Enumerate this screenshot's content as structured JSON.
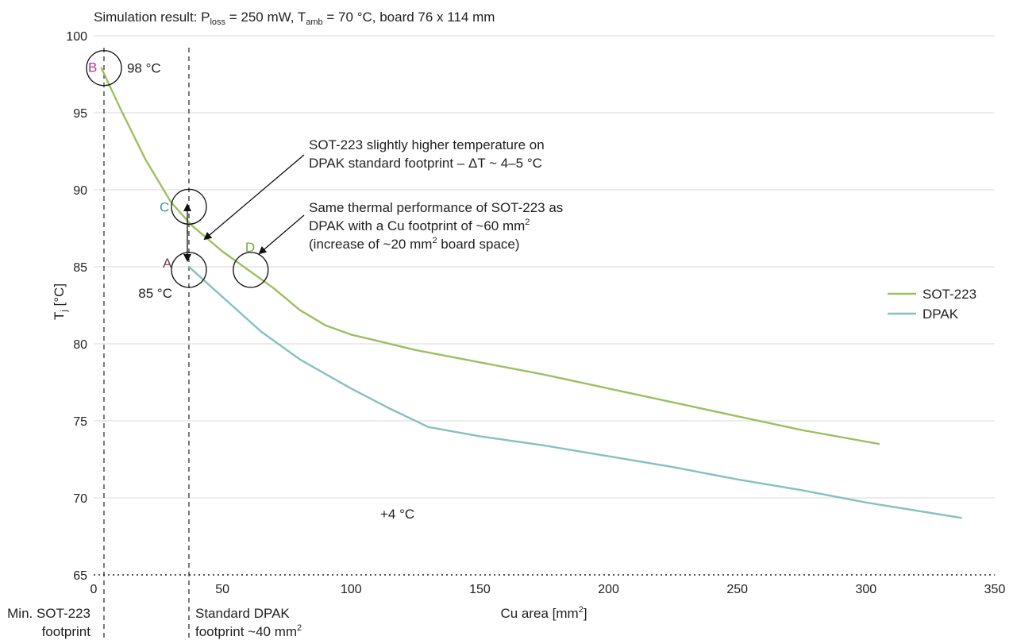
{
  "chart_data": {
    "type": "line",
    "title": {
      "prefix": "Simulation result: P",
      "sub1": "loss",
      "mid1": " = 250 mW, T",
      "sub2": "amb",
      "suffix": " = 70 °C, board 76 x 114 mm"
    },
    "xlabel": {
      "text": "Cu area [mm",
      "sup": "2",
      "close": "]"
    },
    "ylabel": {
      "text": "T",
      "sub": "j",
      "unit": " [°C]"
    },
    "xlim": [
      0,
      350
    ],
    "ylim": [
      65,
      100
    ],
    "xticks": [
      0,
      50,
      100,
      150,
      200,
      250,
      300,
      350
    ],
    "yticks": [
      65,
      70,
      75,
      80,
      85,
      90,
      95,
      100
    ],
    "grid": "horizontal",
    "legend_position": "right",
    "series": [
      {
        "name": "SOT-223",
        "color": "#9dbf63",
        "points": [
          [
            3,
            97.9
          ],
          [
            10,
            95.4
          ],
          [
            20,
            92
          ],
          [
            30,
            89.2
          ],
          [
            38,
            87.7
          ],
          [
            50,
            86
          ],
          [
            60,
            84.8
          ],
          [
            70,
            83.6
          ],
          [
            80,
            82.2
          ],
          [
            90,
            81.2
          ],
          [
            100,
            80.6
          ],
          [
            110,
            80.2
          ],
          [
            125,
            79.6
          ],
          [
            150,
            78.8
          ],
          [
            175,
            78
          ],
          [
            200,
            77.1
          ],
          [
            225,
            76.2
          ],
          [
            250,
            75.3
          ],
          [
            275,
            74.4
          ],
          [
            305,
            73.5
          ]
        ]
      },
      {
        "name": "DPAK",
        "color": "#86c1bd",
        "points": [
          [
            37,
            85
          ],
          [
            45,
            83.8
          ],
          [
            55,
            82.3
          ],
          [
            65,
            80.8
          ],
          [
            80,
            79
          ],
          [
            100,
            77.1
          ],
          [
            115,
            75.8
          ],
          [
            130,
            74.6
          ],
          [
            150,
            74
          ],
          [
            175,
            73.4
          ],
          [
            200,
            72.7
          ],
          [
            225,
            72
          ],
          [
            250,
            71.2
          ],
          [
            275,
            70.5
          ],
          [
            300,
            69.7
          ],
          [
            337,
            68.7
          ]
        ]
      }
    ],
    "vlines": [
      {
        "x": 4,
        "label_lines": [
          "Min. SOT-223",
          "footprint"
        ]
      },
      {
        "x": 37,
        "label_lines": [
          "Standard DPAK",
          "footprint ~40 mm"
        ],
        "label_sup": "2"
      }
    ],
    "markers": [
      {
        "letter": "B",
        "x": 4,
        "y": 97.9,
        "color": "#b5378d",
        "value_label": "98 °C"
      },
      {
        "letter": "C",
        "x": 37,
        "y": 88.9,
        "color": "#3d9a8e",
        "value_label": ""
      },
      {
        "letter": "A",
        "x": 37,
        "y": 84.8,
        "color": "#7b3a4e",
        "value_label": "85 °C"
      },
      {
        "letter": "D",
        "x": 61,
        "y": 84.8,
        "color": "#7aa83a",
        "value_label": ""
      }
    ],
    "annotations": [
      {
        "id": "delta",
        "lines": [
          "SOT-223 slightly higher temperature on",
          "DPAK standard footprint – ΔT ~ 4–5 °C"
        ]
      },
      {
        "id": "same",
        "lines": [
          "Same thermal performance of SOT-223 as",
          "DPAK with a Cu footprint of ~60 mm",
          "(increase of ~20 mm",
          " board space)"
        ],
        "sup": "2"
      },
      {
        "id": "plus",
        "text": "+4 °C"
      }
    ],
    "colors": {
      "accent_text": "#222222",
      "grid": "#d9d9d9"
    }
  }
}
